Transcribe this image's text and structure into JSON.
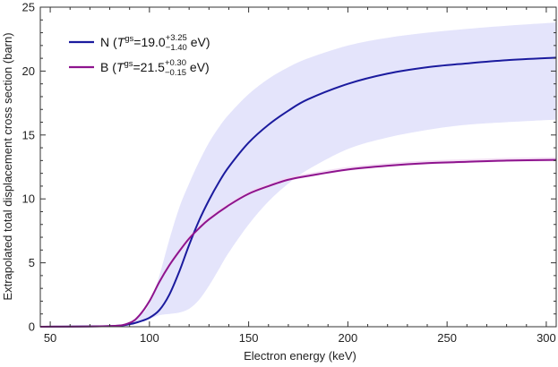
{
  "chart_data": {
    "type": "line",
    "xlabel": "Electron energy (keV)",
    "ylabel": "Extrapolated total displacement cross section (barn)",
    "xlim": [
      45,
      305
    ],
    "ylim": [
      0,
      25
    ],
    "xticks": [
      50,
      100,
      150,
      200,
      250,
      300
    ],
    "yticks": [
      0,
      5,
      10,
      15,
      20,
      25
    ],
    "grid": false,
    "legend_position": "top-left",
    "colors": {
      "N": "#1b1b9e",
      "B": "#8e148e",
      "N_band": "#e4e4fb",
      "B_band": "#f2d9f2"
    },
    "series": [
      {
        "name": "N",
        "legend": {
          "prefix": "N (",
          "T": "T",
          "sup_gs": "gs",
          "value": "=19.0",
          "err_plus": "+3.25",
          "err_minus": "−1.40",
          "unit": " eV)"
        },
        "x": [
          45,
          80,
          90,
          95,
          100,
          105,
          110,
          115,
          120,
          125,
          130,
          135,
          140,
          150,
          160,
          170,
          180,
          200,
          220,
          240,
          260,
          280,
          305
        ],
        "y": [
          0,
          0.05,
          0.2,
          0.4,
          0.7,
          1.3,
          2.5,
          4.3,
          6.4,
          8.3,
          9.9,
          11.3,
          12.5,
          14.4,
          15.8,
          16.9,
          17.8,
          19.0,
          19.8,
          20.3,
          20.6,
          20.85,
          21.05
        ],
        "lower": [
          0,
          0.05,
          0.2,
          0.4,
          0.6,
          0.9,
          1.0,
          1.1,
          1.4,
          2.1,
          3.2,
          4.5,
          5.8,
          8.0,
          9.8,
          11.2,
          12.3,
          13.9,
          14.8,
          15.4,
          15.8,
          16.0,
          16.2
        ],
        "upper": [
          0,
          0.1,
          0.35,
          0.8,
          1.8,
          4.0,
          6.8,
          9.3,
          11.2,
          12.9,
          14.4,
          15.6,
          16.6,
          18.2,
          19.4,
          20.3,
          21.0,
          22.0,
          22.6,
          23.0,
          23.3,
          23.55,
          23.8
        ]
      },
      {
        "name": "B",
        "legend": {
          "prefix": "B (",
          "T": "T",
          "sup_gs": "gs",
          "value": "=21.5",
          "err_plus": "+0.30",
          "err_minus": "−0.15",
          "unit": " eV)"
        },
        "x": [
          45,
          80,
          90,
          95,
          100,
          105,
          110,
          115,
          120,
          125,
          130,
          140,
          150,
          160,
          170,
          180,
          200,
          220,
          240,
          260,
          280,
          305
        ],
        "y": [
          0,
          0.05,
          0.3,
          0.9,
          2.0,
          3.5,
          4.8,
          5.9,
          6.9,
          7.7,
          8.4,
          9.5,
          10.4,
          11.0,
          11.5,
          11.8,
          12.3,
          12.6,
          12.8,
          12.9,
          13.0,
          13.05
        ],
        "lower": [
          0,
          0.05,
          0.3,
          0.85,
          1.9,
          3.4,
          4.7,
          5.8,
          6.8,
          7.6,
          8.3,
          9.4,
          10.3,
          10.9,
          11.4,
          11.7,
          12.2,
          12.5,
          12.7,
          12.8,
          12.9,
          12.95
        ],
        "upper": [
          0,
          0.07,
          0.35,
          1.0,
          2.1,
          3.7,
          5.0,
          6.1,
          7.1,
          7.9,
          8.6,
          9.7,
          10.6,
          11.2,
          11.7,
          12.0,
          12.5,
          12.8,
          13.0,
          13.1,
          13.2,
          13.25
        ]
      }
    ]
  }
}
